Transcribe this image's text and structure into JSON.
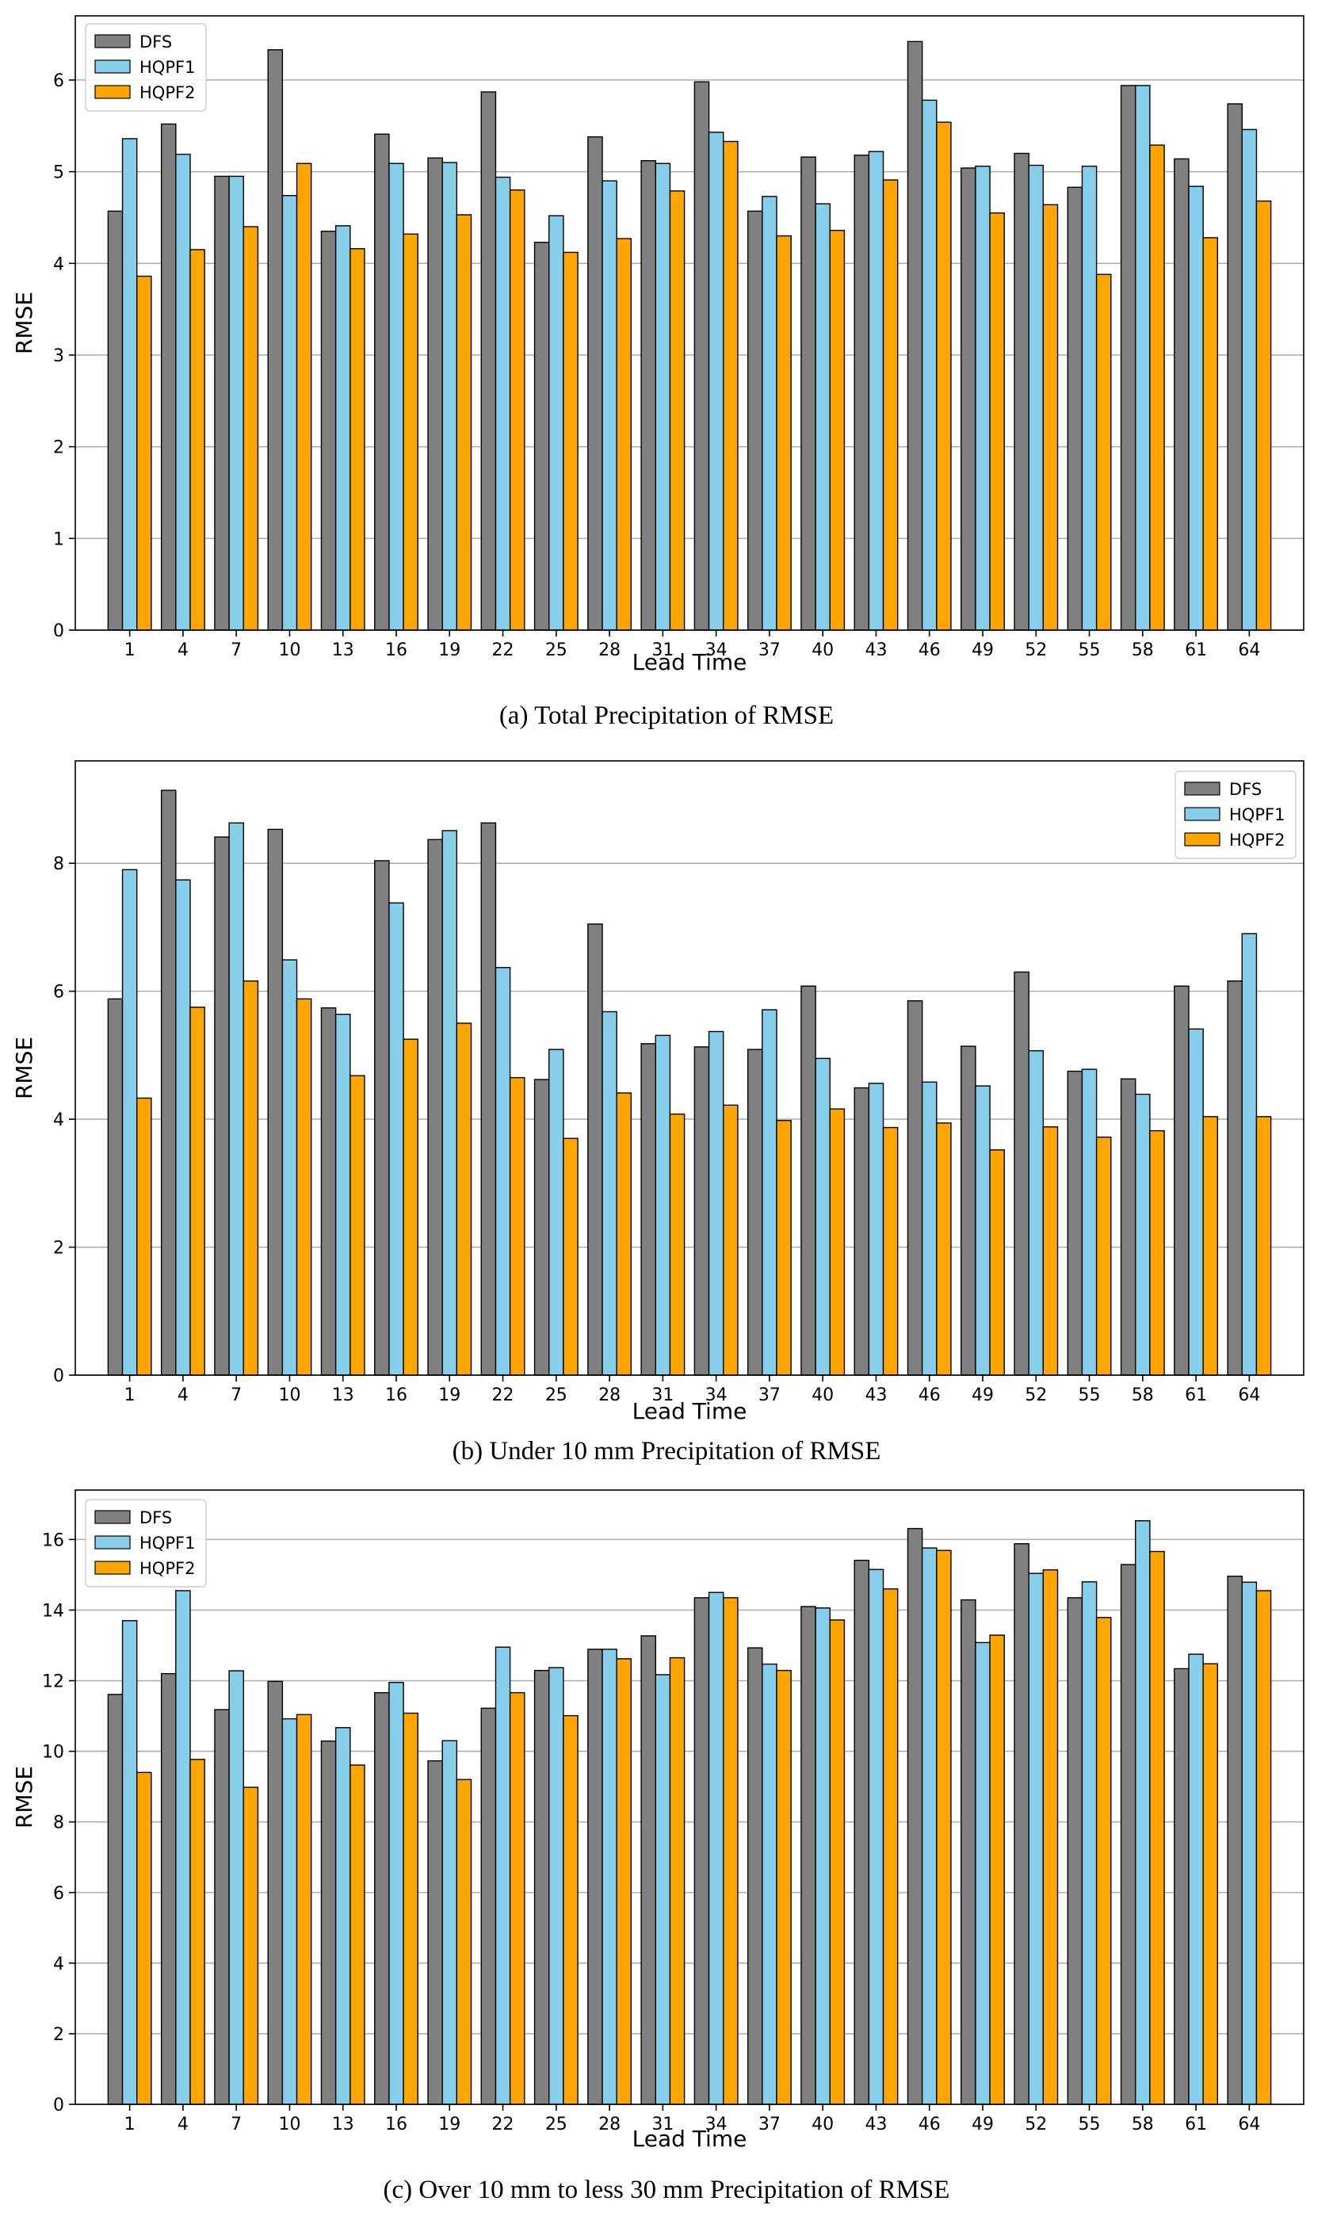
{
  "colors": {
    "DFS": "#808080",
    "HQPF1": "#87ceeb",
    "HQPF2": "#ffa500"
  },
  "chart_data": [
    {
      "type": "bar",
      "caption": "(a) Total Precipitation of RMSE",
      "xlabel": "Lead Time",
      "ylabel": "RMSE",
      "ylim": [
        0,
        6.7
      ],
      "yticks": [
        0,
        1,
        2,
        3,
        4,
        5,
        6
      ],
      "legend_position": "top-left",
      "categories": [
        "1",
        "4",
        "7",
        "10",
        "13",
        "16",
        "19",
        "22",
        "25",
        "28",
        "31",
        "34",
        "37",
        "40",
        "43",
        "46",
        "49",
        "52",
        "55",
        "58",
        "61",
        "64"
      ],
      "series": [
        {
          "name": "DFS",
          "values": [
            4.57,
            5.52,
            4.95,
            6.33,
            4.35,
            5.41,
            5.15,
            5.87,
            4.23,
            5.38,
            5.12,
            5.98,
            4.57,
            5.16,
            5.18,
            6.42,
            5.04,
            5.2,
            4.83,
            5.94,
            5.14,
            5.74
          ]
        },
        {
          "name": "HQPF1",
          "values": [
            5.36,
            5.19,
            4.95,
            4.74,
            4.41,
            5.09,
            5.1,
            4.94,
            4.52,
            4.9,
            5.09,
            5.43,
            4.73,
            4.65,
            5.22,
            5.78,
            5.06,
            5.07,
            5.06,
            5.94,
            4.84,
            5.46
          ]
        },
        {
          "name": "HQPF2",
          "values": [
            3.86,
            4.15,
            4.4,
            5.09,
            4.16,
            4.32,
            4.53,
            4.8,
            4.12,
            4.27,
            4.79,
            5.33,
            4.3,
            4.36,
            4.91,
            5.54,
            4.55,
            4.64,
            3.88,
            5.29,
            4.28,
            4.68
          ]
        }
      ]
    },
    {
      "type": "bar",
      "caption": "(b) Under 10 mm Precipitation of RMSE",
      "xlabel": "Lead Time",
      "ylabel": "RMSE",
      "ylim": [
        0,
        9.6
      ],
      "yticks": [
        0,
        2,
        4,
        6,
        8
      ],
      "legend_position": "top-right",
      "categories": [
        "1",
        "4",
        "7",
        "10",
        "13",
        "16",
        "19",
        "22",
        "25",
        "28",
        "31",
        "34",
        "37",
        "40",
        "43",
        "46",
        "49",
        "52",
        "55",
        "58",
        "61",
        "64"
      ],
      "series": [
        {
          "name": "DFS",
          "values": [
            5.88,
            9.14,
            8.41,
            8.53,
            5.74,
            8.04,
            8.37,
            8.63,
            4.62,
            7.05,
            5.18,
            5.13,
            5.09,
            6.08,
            4.49,
            5.85,
            5.14,
            6.3,
            4.75,
            4.63,
            6.08,
            6.16
          ]
        },
        {
          "name": "HQPF1",
          "values": [
            7.9,
            7.74,
            8.63,
            6.49,
            5.64,
            7.38,
            8.51,
            6.37,
            5.09,
            5.68,
            5.31,
            5.37,
            5.71,
            4.95,
            4.56,
            4.58,
            4.52,
            5.07,
            4.78,
            4.39,
            5.41,
            6.9
          ]
        },
        {
          "name": "HQPF2",
          "values": [
            4.33,
            5.75,
            6.16,
            5.88,
            4.68,
            5.25,
            5.5,
            4.65,
            3.7,
            4.41,
            4.08,
            4.22,
            3.98,
            4.16,
            3.87,
            3.94,
            3.52,
            3.88,
            3.72,
            3.82,
            4.04,
            4.04
          ]
        }
      ]
    },
    {
      "type": "bar",
      "caption": "(c) Over 10 mm to less 30 mm Precipitation of RMSE",
      "xlabel": "Lead Time",
      "ylabel": "RMSE",
      "ylim": [
        0,
        17.4
      ],
      "yticks": [
        0,
        2,
        4,
        6,
        8,
        10,
        12,
        14,
        16
      ],
      "legend_position": "top-left",
      "categories": [
        "1",
        "4",
        "7",
        "10",
        "13",
        "16",
        "19",
        "22",
        "25",
        "28",
        "31",
        "34",
        "37",
        "40",
        "43",
        "46",
        "49",
        "52",
        "55",
        "58",
        "61",
        "64"
      ],
      "series": [
        {
          "name": "DFS",
          "values": [
            11.61,
            12.2,
            11.18,
            11.98,
            10.29,
            11.66,
            9.73,
            11.22,
            12.29,
            12.89,
            13.27,
            14.35,
            12.93,
            14.1,
            15.41,
            16.31,
            14.29,
            15.88,
            14.35,
            15.29,
            12.34,
            14.96
          ]
        },
        {
          "name": "HQPF1",
          "values": [
            13.7,
            14.55,
            12.28,
            10.92,
            10.67,
            11.95,
            10.3,
            12.95,
            12.37,
            12.89,
            12.17,
            14.5,
            12.47,
            14.06,
            15.15,
            15.76,
            13.08,
            15.04,
            14.8,
            16.53,
            12.75,
            14.79
          ]
        },
        {
          "name": "HQPF2",
          "values": [
            9.4,
            9.77,
            8.98,
            11.04,
            9.61,
            11.08,
            9.2,
            11.66,
            11.01,
            12.62,
            12.65,
            14.35,
            12.29,
            13.72,
            14.6,
            15.69,
            13.29,
            15.14,
            13.79,
            15.66,
            12.48,
            14.55
          ]
        }
      ]
    }
  ]
}
